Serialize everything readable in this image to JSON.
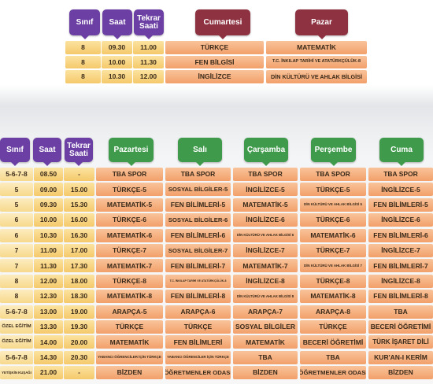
{
  "top_table": {
    "headers": [
      "Sınıf",
      "Saat",
      "Tekrar Saati",
      "Cumartesi",
      "Pazar"
    ],
    "rows": [
      [
        "8",
        "09.30",
        "11.00",
        "TÜRKÇE",
        "MATEMATİK"
      ],
      [
        "8",
        "10.00",
        "11.30",
        "FEN BİLGİSİ",
        "T.C. İNKILAP TARİHİ VE ATATÜRKÇÜLÜK-8"
      ],
      [
        "8",
        "10.30",
        "12.00",
        "İNGİLİZCE",
        "DİN KÜLTÜRÜ VE AHLAK BİLGİSİ"
      ]
    ]
  },
  "bottom_table": {
    "headers": [
      "Sınıf",
      "Saat",
      "Tekrar Saati",
      "Pazartesi",
      "Salı",
      "Çarşamba",
      "Perşembe",
      "Cuma"
    ],
    "rows": [
      [
        "5-6-7-8",
        "08.50",
        "-",
        "TBA SPOR",
        "TBA SPOR",
        "TBA SPOR",
        "TBA SPOR",
        "TBA SPOR"
      ],
      [
        "5",
        "09.00",
        "15.00",
        "TÜRKÇE-5",
        "SOSYAL BİLGİLER-5",
        "İNGİLİZCE-5",
        "TÜRKÇE-5",
        "İNGİLİZCE-5"
      ],
      [
        "5",
        "09.30",
        "15.30",
        "MATEMATİK-5",
        "FEN BİLİMLERİ-5",
        "MATEMATİK-5",
        "DİN KÜLTÜRÜ VE AHLAK BİLGİSİ 5",
        "FEN BİLİMLERİ-5"
      ],
      [
        "6",
        "10.00",
        "16.00",
        "TÜRKÇE-6",
        "SOSYAL BİLGİLER-6",
        "İNGİLİZCE-6",
        "TÜRKÇE-6",
        "İNGİLİZCE-6"
      ],
      [
        "6",
        "10.30",
        "16.30",
        "MATEMATİK-6",
        "FEN BİLİMLERİ-6",
        "DİN KÜLTÜRÜ VE AHLAK BİLGİSİ 6",
        "MATEMATİK-6",
        "FEN BİLİMLERİ-6"
      ],
      [
        "7",
        "11.00",
        "17.00",
        "TÜRKÇE-7",
        "SOSYAL BİLGİLER-7",
        "İNGİLİZCE-7",
        "TÜRKÇE-7",
        "İNGİLİZCE-7"
      ],
      [
        "7",
        "11.30",
        "17.30",
        "MATEMATİK-7",
        "FEN BİLİMLERİ-7",
        "MATEMATİK-7",
        "DİN KÜLTÜRÜ VE AHLAK BİLGİSİ 7",
        "FEN BİLİMLERİ-7"
      ],
      [
        "8",
        "12.00",
        "18.00",
        "TÜRKÇE-8",
        "T.C. İNKILAP TARİHİ VE ATATÜRKÇÜLÜK-8",
        "İNGİLİZCE-8",
        "TÜRKÇE-8",
        "İNGİLİZCE-8"
      ],
      [
        "8",
        "12.30",
        "18.30",
        "MATEMATİK-8",
        "FEN BİLİMLERİ-8",
        "DİN KÜLTÜRÜ VE AHLAK BİLGİSİ 8",
        "MATEMATİK-8",
        "FEN BİLİMLERİ-8"
      ],
      [
        "5-6-7-8",
        "13.00",
        "19.00",
        "ARAPÇA-5",
        "ARAPÇA-6",
        "ARAPÇA-7",
        "ARAPÇA-8",
        "TBA"
      ],
      [
        "ÖZEL EĞİTİM",
        "13.30",
        "19.30",
        "TÜRKÇE",
        "TÜRKÇE",
        "SOSYAL BİLGİLER",
        "TÜRKÇE",
        "BECERİ ÖĞRETİMİ"
      ],
      [
        "ÖZEL EĞİTİM",
        "14.00",
        "20.00",
        "MATEMATİK",
        "FEN BİLİMLERİ",
        "MATEMATİK",
        "BECERİ ÖĞRETİMİ",
        "TÜRK İŞARET DİLİ"
      ],
      [
        "5-6-7-8",
        "14.30",
        "20.30",
        "YABANCI ÖĞRENCİLER İÇİN TÜRKÇE",
        "YABANCI ÖĞRENCİLER İÇİN TÜRKÇE",
        "TBA",
        "TBA",
        "KUR'AN-I KERİM"
      ],
      [
        "YETİŞKİN KUŞAĞI",
        "21.00",
        "-",
        "BİZDEN",
        "ÖĞRETMENLER ODASI",
        "BİZDEN",
        "ÖĞRETMENLER ODASI",
        "BİZDEN"
      ]
    ]
  }
}
